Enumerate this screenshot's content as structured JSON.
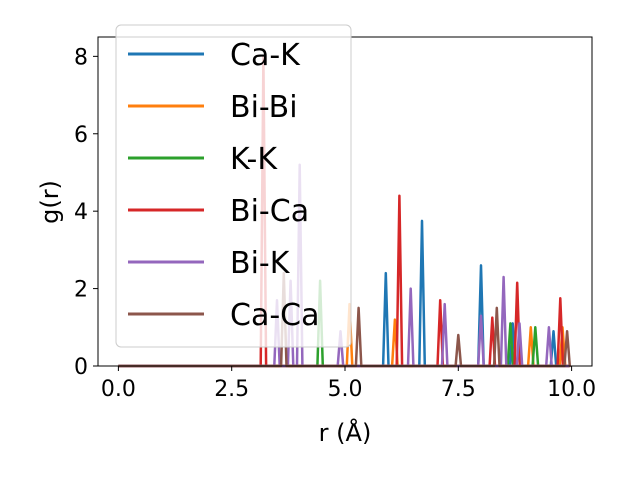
{
  "chart_data": {
    "type": "line",
    "xlabel": "r (Å)",
    "ylabel": "g(r)",
    "xlim": [
      -0.45,
      10.45
    ],
    "ylim": [
      0,
      8.5
    ],
    "xticks": [
      0.0,
      2.5,
      5.0,
      7.5,
      10.0
    ],
    "xtick_labels": [
      "0.0",
      "2.5",
      "5.0",
      "7.5",
      "10.0"
    ],
    "yticks": [
      0,
      2,
      4,
      6,
      8
    ],
    "ytick_labels": [
      "0",
      "2",
      "4",
      "6",
      "8"
    ],
    "grid": false,
    "legend_position": "upper-left",
    "series": [
      {
        "name": "Ca-K",
        "color": "#1f77b4",
        "peaks": [
          [
            5.9,
            2.4
          ],
          [
            6.7,
            3.75
          ],
          [
            8.0,
            2.6
          ],
          [
            8.7,
            1.1
          ],
          [
            9.6,
            0.9
          ]
        ]
      },
      {
        "name": "Bi-Bi",
        "color": "#ff7f0e",
        "peaks": [
          [
            5.1,
            1.6
          ],
          [
            6.1,
            1.2
          ],
          [
            9.1,
            1.0
          ],
          [
            9.8,
            1.0
          ]
        ]
      },
      {
        "name": "K-K",
        "color": "#2ca02c",
        "peaks": [
          [
            4.45,
            2.2
          ],
          [
            8.65,
            1.1
          ],
          [
            9.2,
            1.0
          ]
        ]
      },
      {
        "name": "Bi-Ca",
        "color": "#d62728",
        "peaks": [
          [
            3.2,
            8.0
          ],
          [
            6.2,
            4.4
          ],
          [
            7.1,
            1.7
          ],
          [
            8.25,
            1.25
          ],
          [
            8.8,
            2.15
          ],
          [
            9.75,
            1.75
          ]
        ]
      },
      {
        "name": "Bi-K",
        "color": "#9467bd",
        "peaks": [
          [
            3.5,
            1.7
          ],
          [
            3.8,
            2.2
          ],
          [
            4.0,
            5.2
          ],
          [
            4.9,
            0.9
          ],
          [
            6.45,
            2.0
          ],
          [
            7.2,
            1.6
          ],
          [
            8.0,
            1.3
          ],
          [
            8.5,
            2.3
          ],
          [
            8.85,
            1.1
          ],
          [
            9.5,
            1.0
          ]
        ]
      },
      {
        "name": "Ca-Ca",
        "color": "#8c564b",
        "peaks": [
          [
            3.65,
            2.4
          ],
          [
            5.3,
            1.5
          ],
          [
            7.5,
            0.8
          ],
          [
            8.35,
            1.5
          ],
          [
            9.9,
            0.9
          ]
        ]
      }
    ]
  }
}
